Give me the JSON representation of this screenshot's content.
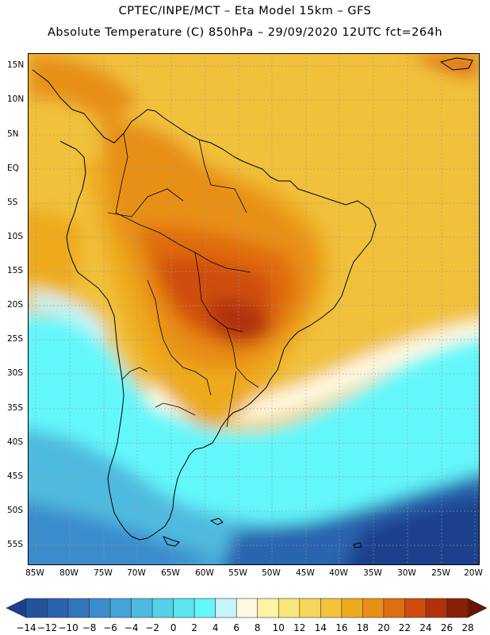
{
  "title_line1": "CPTEC/INPE/MCT –  Eta Model 15km – GFS",
  "title_line2": "Absolute Temperature (C) 850hPa – 29/09/2020 12UTC fct=264h",
  "lat_labels": [
    "15N",
    "10N",
    "5N",
    "EQ",
    "5S",
    "10S",
    "15S",
    "20S",
    "25S",
    "30S",
    "35S",
    "40S",
    "45S",
    "50S",
    "55S"
  ],
  "lon_labels": [
    "85W",
    "80W",
    "75W",
    "70W",
    "65W",
    "60W",
    "55W",
    "50W",
    "45W",
    "40W",
    "35W",
    "30W",
    "25W",
    "20W"
  ],
  "colorbar": {
    "labels": [
      "-14",
      "-12",
      "-10",
      "-8",
      "-6",
      "-4",
      "-2",
      "0",
      "2",
      "4",
      "6",
      "8",
      "10",
      "12",
      "14",
      "16",
      "18",
      "20",
      "22",
      "24",
      "26",
      "28"
    ],
    "colors": [
      "#1b3f8c",
      "#24539e",
      "#2a63ae",
      "#3276bd",
      "#3b8ccc",
      "#46a3d8",
      "#4fbadf",
      "#56d0e8",
      "#5ce4f0",
      "#63f7fb",
      "#c8f4fb",
      "#fff9e2",
      "#fcf3a5",
      "#f9e57a",
      "#f6d65a",
      "#f2c33b",
      "#eeaa1f",
      "#e88f17",
      "#e06c11",
      "#cf4d0d",
      "#b13208",
      "#8c1f08",
      "#6b1205"
    ]
  }
}
